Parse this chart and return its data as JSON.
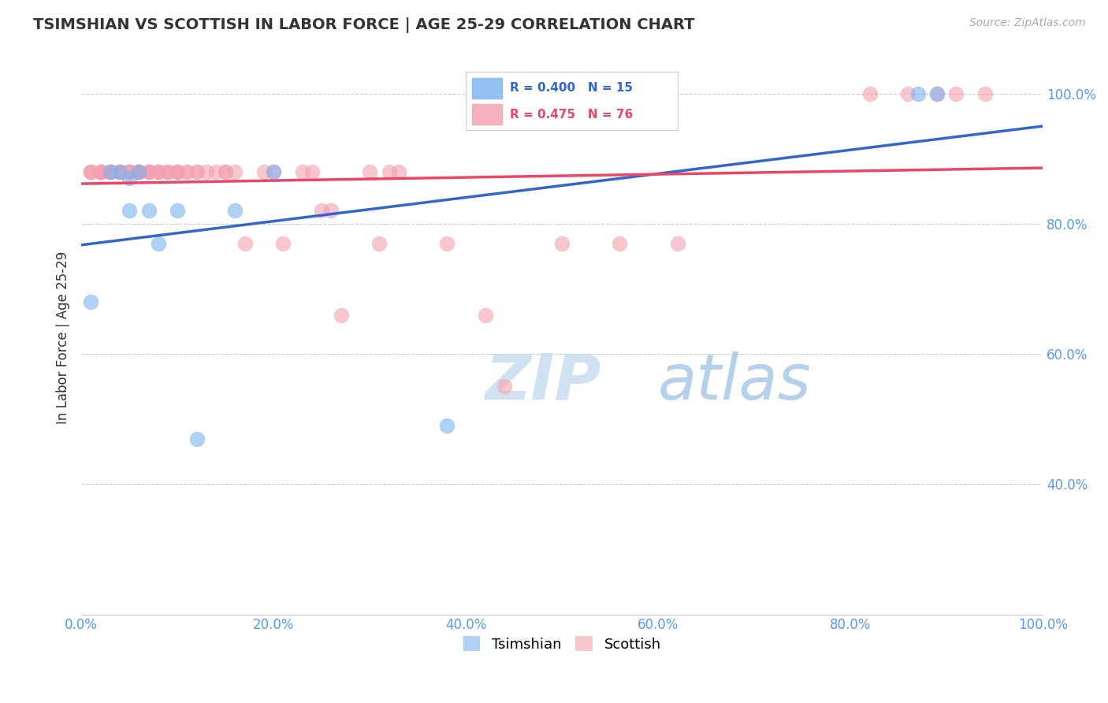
{
  "title": "TSIMSHIAN VS SCOTTISH IN LABOR FORCE | AGE 25-29 CORRELATION CHART",
  "source_text": "Source: ZipAtlas.com",
  "ylabel": "In Labor Force | Age 25-29",
  "xlim": [
    0.0,
    1.0
  ],
  "ylim": [
    0.2,
    1.05
  ],
  "xticks": [
    0.0,
    0.2,
    0.4,
    0.6,
    0.8,
    1.0
  ],
  "yticks": [
    0.4,
    0.6,
    0.8,
    1.0
  ],
  "xticklabels": [
    "0.0%",
    "20.0%",
    "40.0%",
    "60.0%",
    "80.0%",
    "100.0%"
  ],
  "yticklabels_right": [
    "40.0%",
    "60.0%",
    "80.0%",
    "100.0%"
  ],
  "grid_color": "#cccccc",
  "background_color": "#ffffff",
  "tsimshian_color": "#7bb3f0",
  "scottish_color": "#f4a0b0",
  "tsimshian_line_color": "#3366cc",
  "scottish_line_color": "#ee4466",
  "tsimshian_scatter_x": [
    0.01,
    0.03,
    0.04,
    0.05,
    0.05,
    0.06,
    0.07,
    0.08,
    0.1,
    0.12,
    0.16,
    0.2,
    0.38,
    0.87,
    0.89
  ],
  "tsimshian_scatter_y": [
    0.68,
    0.88,
    0.88,
    0.87,
    0.82,
    0.88,
    0.82,
    0.77,
    0.82,
    0.47,
    0.82,
    0.88,
    0.49,
    1.0,
    1.0
  ],
  "scottish_scatter_x": [
    0.01,
    0.01,
    0.01,
    0.02,
    0.02,
    0.02,
    0.02,
    0.02,
    0.03,
    0.03,
    0.03,
    0.03,
    0.03,
    0.03,
    0.04,
    0.04,
    0.04,
    0.04,
    0.04,
    0.05,
    0.05,
    0.05,
    0.05,
    0.06,
    0.06,
    0.06,
    0.06,
    0.06,
    0.06,
    0.06,
    0.07,
    0.07,
    0.07,
    0.07,
    0.08,
    0.08,
    0.08,
    0.09,
    0.09,
    0.09,
    0.1,
    0.1,
    0.1,
    0.11,
    0.11,
    0.12,
    0.12,
    0.13,
    0.14,
    0.15,
    0.15,
    0.16,
    0.17,
    0.19,
    0.2,
    0.21,
    0.23,
    0.24,
    0.25,
    0.26,
    0.27,
    0.3,
    0.31,
    0.32,
    0.33,
    0.38,
    0.42,
    0.44,
    0.5,
    0.56,
    0.62,
    0.82,
    0.86,
    0.89,
    0.91,
    0.94
  ],
  "scottish_scatter_y": [
    0.88,
    0.88,
    0.88,
    0.88,
    0.88,
    0.88,
    0.88,
    0.88,
    0.88,
    0.88,
    0.88,
    0.88,
    0.88,
    0.88,
    0.88,
    0.88,
    0.88,
    0.88,
    0.88,
    0.88,
    0.88,
    0.88,
    0.88,
    0.88,
    0.88,
    0.88,
    0.88,
    0.88,
    0.88,
    0.88,
    0.88,
    0.88,
    0.88,
    0.88,
    0.88,
    0.88,
    0.88,
    0.88,
    0.88,
    0.88,
    0.88,
    0.88,
    0.88,
    0.88,
    0.88,
    0.88,
    0.88,
    0.88,
    0.88,
    0.88,
    0.88,
    0.88,
    0.77,
    0.88,
    0.88,
    0.77,
    0.88,
    0.88,
    0.82,
    0.82,
    0.66,
    0.88,
    0.77,
    0.88,
    0.88,
    0.77,
    0.66,
    0.55,
    0.77,
    0.77,
    0.77,
    1.0,
    1.0,
    1.0,
    1.0,
    1.0
  ]
}
